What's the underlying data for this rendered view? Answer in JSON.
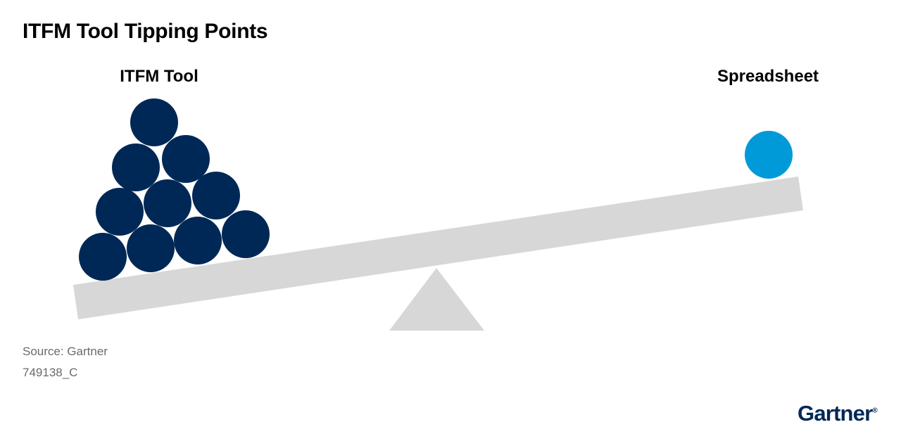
{
  "title": "ITFM Tool Tipping Points",
  "left_label": "ITFM Tool",
  "right_label": "Spreadsheet",
  "source": "Source: Gartner",
  "doc_id": "749138_C",
  "logo": "Gartner",
  "logo_mark": "®",
  "left_ball_count": 10,
  "right_ball_count": 1,
  "colors": {
    "left_balls": "#002856",
    "right_ball": "#009ad9",
    "beam": "#d7d7d7",
    "fulcrum": "#d7d7d7",
    "logo": "#002856"
  }
}
